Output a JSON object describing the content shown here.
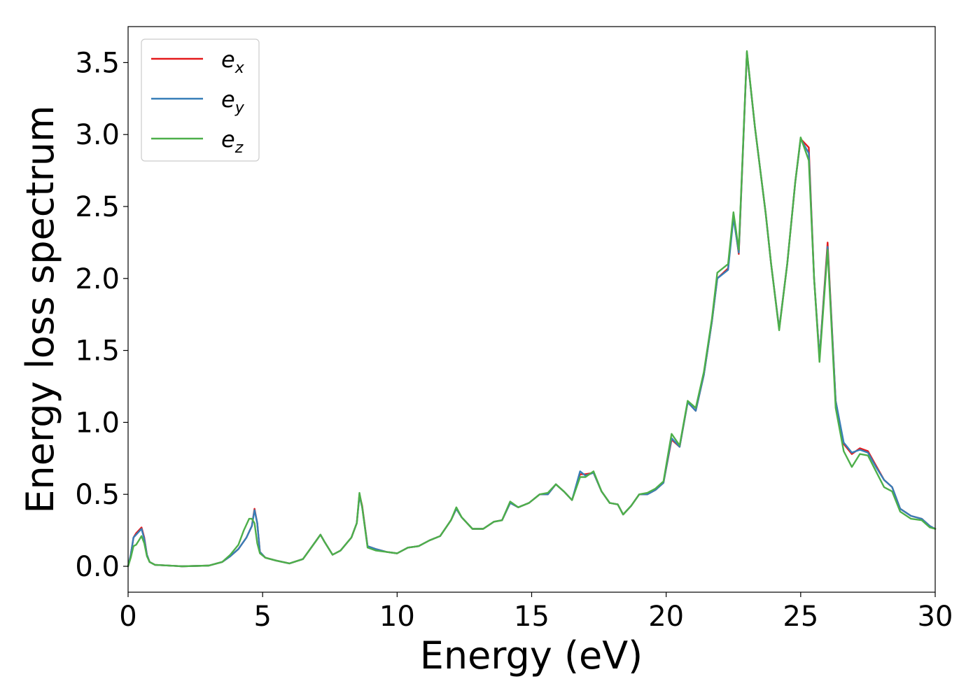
{
  "chart_data": {
    "type": "line",
    "title": "",
    "xlabel": "Energy (eV)",
    "ylabel": "Energy loss spectrum",
    "xlim": [
      0,
      30
    ],
    "ylim": [
      -0.18,
      3.75
    ],
    "xticks": [
      0,
      5,
      10,
      15,
      20,
      25,
      30
    ],
    "xtick_labels": [
      "0",
      "5",
      "10",
      "15",
      "20",
      "25",
      "30"
    ],
    "yticks": [
      0.0,
      0.5,
      1.0,
      1.5,
      2.0,
      2.5,
      3.0,
      3.5
    ],
    "ytick_labels": [
      "0.0",
      "0.5",
      "1.0",
      "1.5",
      "2.0",
      "2.5",
      "3.0",
      "3.5"
    ],
    "grid": false,
    "legend_position": "top-left",
    "series": [
      {
        "name": "e_x",
        "legend_main": "e",
        "legend_sub": "x",
        "color": "#e41a1c",
        "points": [
          [
            0,
            0
          ],
          [
            0.1,
            0.08
          ],
          [
            0.2,
            0.2
          ],
          [
            0.3,
            0.23
          ],
          [
            0.4,
            0.25
          ],
          [
            0.5,
            0.27
          ],
          [
            0.6,
            0.2
          ],
          [
            0.7,
            0.08
          ],
          [
            0.8,
            0.03
          ],
          [
            1.0,
            0.01
          ],
          [
            2.0,
            0.0
          ],
          [
            3.0,
            0.005
          ],
          [
            3.5,
            0.03
          ],
          [
            3.8,
            0.07
          ],
          [
            4.1,
            0.12
          ],
          [
            4.4,
            0.2
          ],
          [
            4.6,
            0.28
          ],
          [
            4.7,
            0.4
          ],
          [
            4.8,
            0.3
          ],
          [
            4.9,
            0.1
          ],
          [
            5.1,
            0.06
          ],
          [
            5.5,
            0.04
          ],
          [
            6.0,
            0.02
          ],
          [
            6.5,
            0.05
          ],
          [
            7.0,
            0.18
          ],
          [
            7.15,
            0.22
          ],
          [
            7.3,
            0.17
          ],
          [
            7.6,
            0.08
          ],
          [
            7.9,
            0.11
          ],
          [
            8.3,
            0.2
          ],
          [
            8.5,
            0.3
          ],
          [
            8.6,
            0.5
          ],
          [
            8.7,
            0.42
          ],
          [
            8.9,
            0.14
          ],
          [
            9.2,
            0.12
          ],
          [
            9.6,
            0.1
          ],
          [
            10.0,
            0.09
          ],
          [
            10.4,
            0.13
          ],
          [
            10.8,
            0.14
          ],
          [
            11.2,
            0.18
          ],
          [
            11.6,
            0.21
          ],
          [
            12.0,
            0.32
          ],
          [
            12.2,
            0.4
          ],
          [
            12.4,
            0.34
          ],
          [
            12.8,
            0.26
          ],
          [
            13.2,
            0.26
          ],
          [
            13.6,
            0.31
          ],
          [
            13.9,
            0.32
          ],
          [
            14.2,
            0.44
          ],
          [
            14.5,
            0.41
          ],
          [
            14.9,
            0.44
          ],
          [
            15.3,
            0.5
          ],
          [
            15.6,
            0.5
          ],
          [
            15.9,
            0.57
          ],
          [
            16.2,
            0.52
          ],
          [
            16.5,
            0.46
          ],
          [
            16.8,
            0.64
          ],
          [
            17.0,
            0.64
          ],
          [
            17.3,
            0.65
          ],
          [
            17.6,
            0.52
          ],
          [
            17.9,
            0.44
          ],
          [
            18.2,
            0.43
          ],
          [
            18.4,
            0.36
          ],
          [
            18.7,
            0.42
          ],
          [
            19.0,
            0.5
          ],
          [
            19.3,
            0.5
          ],
          [
            19.6,
            0.53
          ],
          [
            19.9,
            0.58
          ],
          [
            20.2,
            0.88
          ],
          [
            20.5,
            0.83
          ],
          [
            20.8,
            1.14
          ],
          [
            21.1,
            1.08
          ],
          [
            21.4,
            1.33
          ],
          [
            21.7,
            1.7
          ],
          [
            21.9,
            2.0
          ],
          [
            22.3,
            2.07
          ],
          [
            22.5,
            2.44
          ],
          [
            22.7,
            2.17
          ],
          [
            23.0,
            3.57
          ],
          [
            23.3,
            3.05
          ],
          [
            23.7,
            2.45
          ],
          [
            23.9,
            2.1
          ],
          [
            24.2,
            1.65
          ],
          [
            24.5,
            2.1
          ],
          [
            24.8,
            2.67
          ],
          [
            25.0,
            2.97
          ],
          [
            25.3,
            2.91
          ],
          [
            25.5,
            2.0
          ],
          [
            25.7,
            1.45
          ],
          [
            26.0,
            2.25
          ],
          [
            26.3,
            1.15
          ],
          [
            26.6,
            0.85
          ],
          [
            26.9,
            0.78
          ],
          [
            27.2,
            0.82
          ],
          [
            27.5,
            0.8
          ],
          [
            27.8,
            0.7
          ],
          [
            28.1,
            0.6
          ],
          [
            28.4,
            0.55
          ],
          [
            28.7,
            0.4
          ],
          [
            29.1,
            0.35
          ],
          [
            29.5,
            0.33
          ],
          [
            29.8,
            0.28
          ],
          [
            30.0,
            0.26
          ]
        ]
      },
      {
        "name": "e_y",
        "legend_main": "e",
        "legend_sub": "y",
        "color": "#377eb8",
        "points": [
          [
            0,
            0
          ],
          [
            0.1,
            0.08
          ],
          [
            0.2,
            0.2
          ],
          [
            0.3,
            0.22
          ],
          [
            0.4,
            0.24
          ],
          [
            0.5,
            0.26
          ],
          [
            0.6,
            0.19
          ],
          [
            0.7,
            0.08
          ],
          [
            0.8,
            0.03
          ],
          [
            1.0,
            0.01
          ],
          [
            2.0,
            0.0
          ],
          [
            3.0,
            0.005
          ],
          [
            3.5,
            0.03
          ],
          [
            3.8,
            0.07
          ],
          [
            4.1,
            0.12
          ],
          [
            4.4,
            0.2
          ],
          [
            4.6,
            0.28
          ],
          [
            4.7,
            0.39
          ],
          [
            4.8,
            0.3
          ],
          [
            4.9,
            0.1
          ],
          [
            5.1,
            0.06
          ],
          [
            5.5,
            0.04
          ],
          [
            6.0,
            0.02
          ],
          [
            6.5,
            0.05
          ],
          [
            7.0,
            0.18
          ],
          [
            7.15,
            0.22
          ],
          [
            7.3,
            0.17
          ],
          [
            7.6,
            0.08
          ],
          [
            7.9,
            0.11
          ],
          [
            8.3,
            0.2
          ],
          [
            8.5,
            0.3
          ],
          [
            8.6,
            0.49
          ],
          [
            8.7,
            0.41
          ],
          [
            8.9,
            0.14
          ],
          [
            9.2,
            0.12
          ],
          [
            9.6,
            0.1
          ],
          [
            10.0,
            0.09
          ],
          [
            10.4,
            0.13
          ],
          [
            10.8,
            0.14
          ],
          [
            11.2,
            0.18
          ],
          [
            11.6,
            0.21
          ],
          [
            12.0,
            0.32
          ],
          [
            12.2,
            0.4
          ],
          [
            12.4,
            0.34
          ],
          [
            12.8,
            0.26
          ],
          [
            13.2,
            0.26
          ],
          [
            13.6,
            0.31
          ],
          [
            13.9,
            0.32
          ],
          [
            14.2,
            0.44
          ],
          [
            14.5,
            0.41
          ],
          [
            14.9,
            0.44
          ],
          [
            15.3,
            0.5
          ],
          [
            15.6,
            0.5
          ],
          [
            15.9,
            0.57
          ],
          [
            16.2,
            0.52
          ],
          [
            16.5,
            0.46
          ],
          [
            16.8,
            0.66
          ],
          [
            17.0,
            0.63
          ],
          [
            17.3,
            0.65
          ],
          [
            17.6,
            0.52
          ],
          [
            17.9,
            0.44
          ],
          [
            18.2,
            0.43
          ],
          [
            18.4,
            0.36
          ],
          [
            18.7,
            0.42
          ],
          [
            19.0,
            0.5
          ],
          [
            19.3,
            0.5
          ],
          [
            19.6,
            0.53
          ],
          [
            19.9,
            0.58
          ],
          [
            20.2,
            0.89
          ],
          [
            20.5,
            0.83
          ],
          [
            20.8,
            1.14
          ],
          [
            21.1,
            1.08
          ],
          [
            21.4,
            1.33
          ],
          [
            21.7,
            1.7
          ],
          [
            21.9,
            2.0
          ],
          [
            22.3,
            2.06
          ],
          [
            22.5,
            2.42
          ],
          [
            22.7,
            2.18
          ],
          [
            23.0,
            3.57
          ],
          [
            23.3,
            3.05
          ],
          [
            23.7,
            2.45
          ],
          [
            23.9,
            2.1
          ],
          [
            24.2,
            1.65
          ],
          [
            24.5,
            2.1
          ],
          [
            24.8,
            2.67
          ],
          [
            25.0,
            2.97
          ],
          [
            25.3,
            2.87
          ],
          [
            25.5,
            2.0
          ],
          [
            25.7,
            1.45
          ],
          [
            26.0,
            2.22
          ],
          [
            26.3,
            1.15
          ],
          [
            26.6,
            0.86
          ],
          [
            26.9,
            0.79
          ],
          [
            27.2,
            0.81
          ],
          [
            27.5,
            0.79
          ],
          [
            27.8,
            0.69
          ],
          [
            28.1,
            0.6
          ],
          [
            28.4,
            0.55
          ],
          [
            28.7,
            0.4
          ],
          [
            29.1,
            0.35
          ],
          [
            29.5,
            0.33
          ],
          [
            29.8,
            0.28
          ],
          [
            30.0,
            0.26
          ]
        ]
      },
      {
        "name": "e_z",
        "legend_main": "e",
        "legend_sub": "z",
        "color": "#4daf4a",
        "points": [
          [
            0,
            0
          ],
          [
            0.1,
            0.06
          ],
          [
            0.2,
            0.14
          ],
          [
            0.3,
            0.15
          ],
          [
            0.4,
            0.18
          ],
          [
            0.5,
            0.21
          ],
          [
            0.6,
            0.16
          ],
          [
            0.7,
            0.07
          ],
          [
            0.8,
            0.03
          ],
          [
            1.0,
            0.01
          ],
          [
            2.0,
            0.0
          ],
          [
            3.0,
            0.005
          ],
          [
            3.5,
            0.03
          ],
          [
            3.8,
            0.08
          ],
          [
            4.1,
            0.15
          ],
          [
            4.3,
            0.25
          ],
          [
            4.5,
            0.33
          ],
          [
            4.6,
            0.33
          ],
          [
            4.7,
            0.3
          ],
          [
            4.8,
            0.16
          ],
          [
            4.9,
            0.09
          ],
          [
            5.1,
            0.06
          ],
          [
            5.5,
            0.04
          ],
          [
            6.0,
            0.02
          ],
          [
            6.5,
            0.05
          ],
          [
            7.0,
            0.18
          ],
          [
            7.15,
            0.22
          ],
          [
            7.3,
            0.17
          ],
          [
            7.6,
            0.08
          ],
          [
            7.9,
            0.11
          ],
          [
            8.3,
            0.2
          ],
          [
            8.5,
            0.3
          ],
          [
            8.6,
            0.51
          ],
          [
            8.7,
            0.41
          ],
          [
            8.9,
            0.13
          ],
          [
            9.2,
            0.11
          ],
          [
            9.6,
            0.1
          ],
          [
            10.0,
            0.09
          ],
          [
            10.4,
            0.13
          ],
          [
            10.8,
            0.14
          ],
          [
            11.2,
            0.18
          ],
          [
            11.6,
            0.21
          ],
          [
            12.0,
            0.32
          ],
          [
            12.2,
            0.41
          ],
          [
            12.4,
            0.34
          ],
          [
            12.8,
            0.26
          ],
          [
            13.2,
            0.26
          ],
          [
            13.6,
            0.31
          ],
          [
            13.9,
            0.32
          ],
          [
            14.2,
            0.45
          ],
          [
            14.5,
            0.41
          ],
          [
            14.9,
            0.44
          ],
          [
            15.3,
            0.5
          ],
          [
            15.6,
            0.51
          ],
          [
            15.9,
            0.57
          ],
          [
            16.2,
            0.52
          ],
          [
            16.5,
            0.46
          ],
          [
            16.8,
            0.62
          ],
          [
            17.0,
            0.62
          ],
          [
            17.3,
            0.66
          ],
          [
            17.6,
            0.52
          ],
          [
            17.9,
            0.44
          ],
          [
            18.2,
            0.43
          ],
          [
            18.4,
            0.36
          ],
          [
            18.7,
            0.42
          ],
          [
            19.0,
            0.5
          ],
          [
            19.3,
            0.51
          ],
          [
            19.6,
            0.54
          ],
          [
            19.9,
            0.59
          ],
          [
            20.2,
            0.92
          ],
          [
            20.5,
            0.84
          ],
          [
            20.8,
            1.15
          ],
          [
            21.1,
            1.1
          ],
          [
            21.4,
            1.35
          ],
          [
            21.7,
            1.72
          ],
          [
            21.9,
            2.04
          ],
          [
            22.3,
            2.1
          ],
          [
            22.5,
            2.46
          ],
          [
            22.7,
            2.2
          ],
          [
            23.0,
            3.58
          ],
          [
            23.3,
            3.05
          ],
          [
            23.7,
            2.45
          ],
          [
            23.9,
            2.1
          ],
          [
            24.2,
            1.64
          ],
          [
            24.5,
            2.1
          ],
          [
            24.8,
            2.67
          ],
          [
            25.0,
            2.98
          ],
          [
            25.3,
            2.82
          ],
          [
            25.5,
            2.0
          ],
          [
            25.7,
            1.42
          ],
          [
            26.0,
            2.2
          ],
          [
            26.3,
            1.1
          ],
          [
            26.6,
            0.8
          ],
          [
            26.9,
            0.69
          ],
          [
            27.2,
            0.78
          ],
          [
            27.5,
            0.77
          ],
          [
            27.8,
            0.66
          ],
          [
            28.1,
            0.55
          ],
          [
            28.4,
            0.52
          ],
          [
            28.7,
            0.38
          ],
          [
            29.1,
            0.33
          ],
          [
            29.5,
            0.32
          ],
          [
            29.8,
            0.27
          ],
          [
            30.0,
            0.26
          ]
        ]
      }
    ]
  }
}
